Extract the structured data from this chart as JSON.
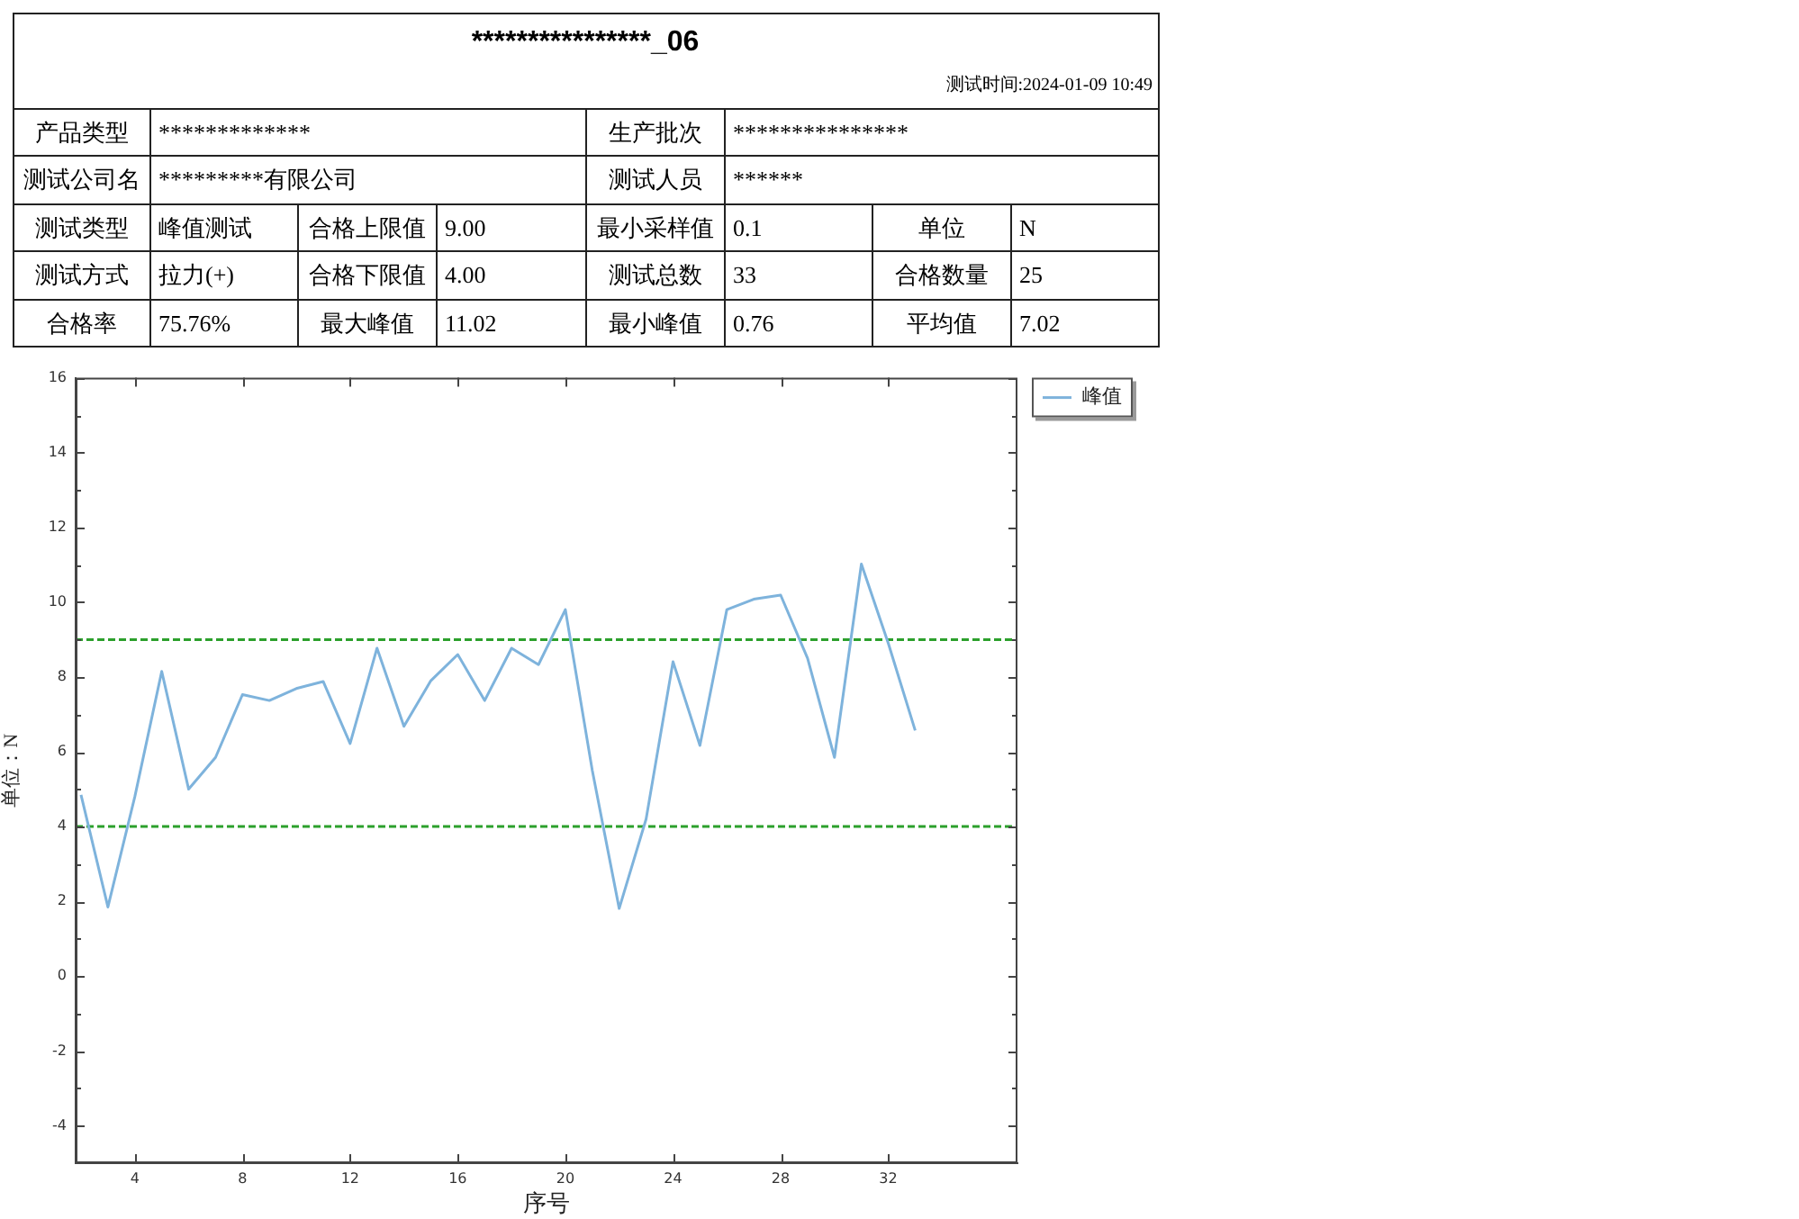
{
  "chart_data": {
    "type": "line",
    "title": "****************_06",
    "subtitle": "测试时间:2024-01-09 10:49",
    "xlabel": "序号",
    "ylabel": "单位：N",
    "x": [
      2,
      3,
      4,
      5,
      6,
      7,
      8,
      9,
      10,
      11,
      12,
      13,
      14,
      15,
      16,
      17,
      18,
      19,
      20,
      21,
      22,
      23,
      24,
      25,
      26,
      27,
      28,
      29,
      30,
      31,
      32,
      33
    ],
    "series": [
      {
        "name": "峰值",
        "color": "#7eb3dc",
        "values": [
          4.85,
          1.85,
          4.8,
          8.15,
          5.0,
          5.85,
          7.53,
          7.37,
          7.69,
          7.88,
          6.22,
          8.77,
          6.68,
          7.9,
          8.6,
          7.37,
          8.77,
          8.33,
          9.8,
          5.5,
          1.81,
          4.2,
          8.41,
          6.17,
          9.8,
          10.08,
          10.19,
          8.5,
          5.85,
          11.02,
          8.9,
          6.57
        ]
      }
    ],
    "xlim": [
      1.8,
      36.8
    ],
    "xticks": [
      4,
      8,
      12,
      16,
      20,
      24,
      28,
      32
    ],
    "ylim": [
      -5,
      16
    ],
    "yticks": [
      -4,
      {
        "value": -3,
        "label": null
      },
      -2,
      {
        "value": -1,
        "label": null
      },
      0,
      {
        "value": 1,
        "label": null
      },
      2,
      {
        "value": 3,
        "label": null
      },
      4,
      {
        "value": 5,
        "label": null
      },
      6,
      {
        "value": 7,
        "label": null
      },
      8,
      {
        "value": 9,
        "label": null
      },
      10,
      {
        "value": 11,
        "label": null
      },
      12,
      {
        "value": 13,
        "label": null
      },
      14,
      {
        "value": 15,
        "label": null
      },
      16
    ],
    "ref_lines": [
      {
        "axis": "y",
        "value": 9,
        "color": "#2ca02c",
        "line_style": "dashed"
      },
      {
        "axis": "y",
        "value": 4,
        "color": "#2ca02c",
        "line_style": "dashed"
      }
    ],
    "grid": false,
    "legend": "top right",
    "marker": "none",
    "annotations": [
      "产品类型",
      "*************",
      "生产批次",
      "***************",
      "测试公司名",
      "*********有限公司",
      "测试人员",
      "******",
      "测试类型",
      "峰值测试",
      "合格上限值",
      "9.00",
      "最小采样值",
      "0.1",
      "单位",
      "N",
      "测试方式",
      "拉力(+)",
      "合格下限值",
      "4.00",
      "测试总数",
      "33",
      "合格数量",
      "25",
      "合格率",
      "75.76%",
      "最大峰值",
      "11.02",
      "最小峰值",
      "0.76",
      "平均值",
      "7.02"
    ]
  }
}
